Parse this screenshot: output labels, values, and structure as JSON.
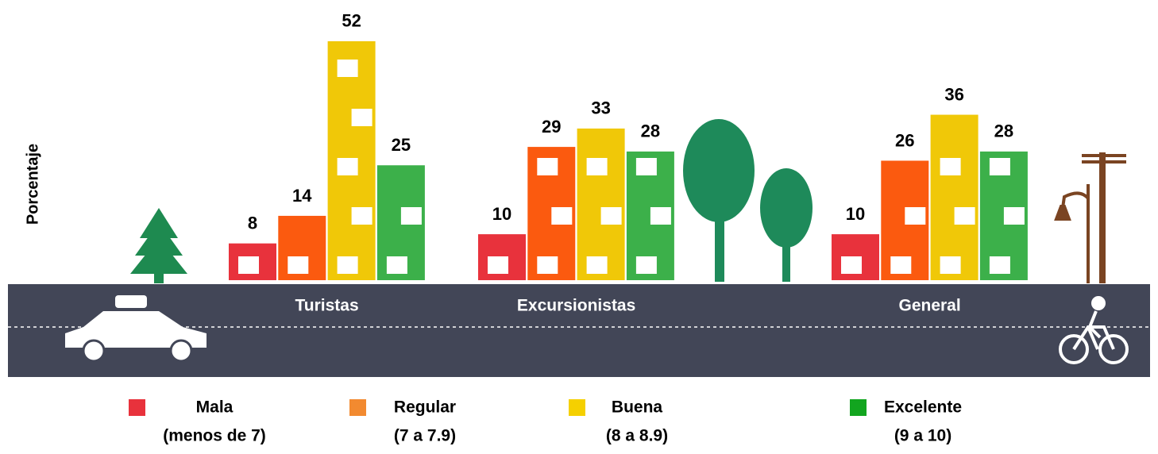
{
  "chart_data": {
    "type": "bar",
    "y_label": "Porcentaje",
    "categories": [
      "Turistas",
      "Excursionistas",
      "General"
    ],
    "series": [
      {
        "name": "Mala",
        "range": "(menos de 7)",
        "color": "#e8323c",
        "legend_color": "#e8323c",
        "values": [
          8,
          10,
          10
        ]
      },
      {
        "name": "Regular",
        "range": "(7 a 7.9)",
        "color": "#fb5a0f",
        "legend_color": "#f28a30",
        "values": [
          14,
          29,
          26
        ]
      },
      {
        "name": "Buena",
        "range": "(8 a 8.9)",
        "color": "#f0c808",
        "legend_color": "#f5d000",
        "values": [
          52,
          33,
          36
        ]
      },
      {
        "name": "Excelente",
        "range": "(9 a 10)",
        "color": "#3cb04a",
        "legend_color": "#12a51f",
        "values": [
          25,
          28,
          28
        ]
      }
    ]
  }
}
